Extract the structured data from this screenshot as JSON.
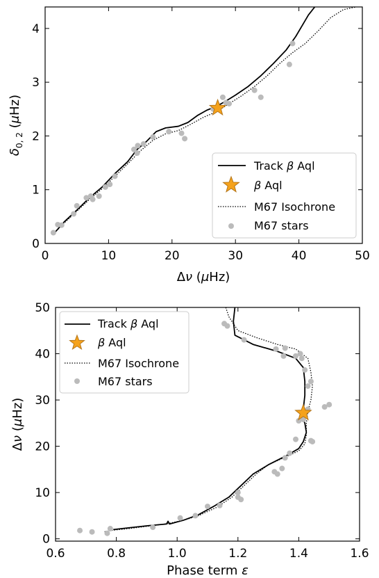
{
  "chart_data": [
    {
      "type": "line",
      "xlabel": "Δν (μHz)",
      "ylabel": "δ0, 2 (μHz)",
      "xlim": [
        0,
        50
      ],
      "ylim": [
        0,
        4.4
      ],
      "xticks": [
        0,
        10,
        20,
        30,
        40,
        50
      ],
      "yticks": [
        0,
        1,
        2,
        3,
        4
      ],
      "xtick_labels": [
        "0",
        "10",
        "20",
        "30",
        "40",
        "50"
      ],
      "ytick_labels": [
        "0",
        "1",
        "2",
        "3",
        "4"
      ],
      "legend_position": "lower-right",
      "legend": [
        "Track β Aql",
        "β Aql",
        "M67 Isochrone",
        "M67 stars"
      ],
      "series": [
        {
          "name": "Track β Aql",
          "style": "solid",
          "color": "#000000",
          "points": [
            [
              1.5,
              0.2
            ],
            [
              3,
              0.4
            ],
            [
              5,
              0.62
            ],
            [
              7,
              0.85
            ],
            [
              9,
              1.05
            ],
            [
              11,
              1.3
            ],
            [
              13,
              1.52
            ],
            [
              14.5,
              1.75
            ],
            [
              16,
              1.9
            ],
            [
              17.5,
              2.08
            ],
            [
              19,
              2.15
            ],
            [
              21,
              2.18
            ],
            [
              22.5,
              2.25
            ],
            [
              24,
              2.38
            ],
            [
              25.5,
              2.48
            ],
            [
              27,
              2.55
            ],
            [
              28.5,
              2.65
            ],
            [
              30,
              2.76
            ],
            [
              32,
              2.92
            ],
            [
              34,
              3.12
            ],
            [
              36,
              3.35
            ],
            [
              38,
              3.6
            ],
            [
              39.5,
              3.85
            ],
            [
              40.5,
              4.05
            ],
            [
              41.5,
              4.25
            ],
            [
              42.5,
              4.4
            ]
          ]
        },
        {
          "name": "M67 Isochrone",
          "style": "dotted",
          "color": "#000000",
          "points": [
            [
              1.5,
              0.2
            ],
            [
              3,
              0.38
            ],
            [
              5,
              0.6
            ],
            [
              7,
              0.82
            ],
            [
              9,
              1.02
            ],
            [
              11,
              1.25
            ],
            [
              13,
              1.48
            ],
            [
              15,
              1.72
            ],
            [
              17,
              1.92
            ],
            [
              19,
              2.04
            ],
            [
              21,
              2.1
            ],
            [
              23,
              2.22
            ],
            [
              25,
              2.35
            ],
            [
              27,
              2.45
            ],
            [
              29,
              2.6
            ],
            [
              31,
              2.75
            ],
            [
              33,
              2.92
            ],
            [
              35,
              3.12
            ],
            [
              37,
              3.35
            ],
            [
              39,
              3.55
            ],
            [
              41,
              3.72
            ],
            [
              43,
              3.95
            ],
            [
              45,
              4.2
            ],
            [
              47,
              4.35
            ],
            [
              49,
              4.4
            ]
          ]
        },
        {
          "name": "M67 stars",
          "style": "scatter",
          "color": "#bbbbbb",
          "points": [
            [
              1.3,
              0.2
            ],
            [
              2,
              0.35
            ],
            [
              2.6,
              0.34
            ],
            [
              4.5,
              0.55
            ],
            [
              5,
              0.7
            ],
            [
              6.5,
              0.85
            ],
            [
              7.2,
              0.88
            ],
            [
              7.5,
              0.82
            ],
            [
              8.5,
              0.88
            ],
            [
              9.5,
              1.05
            ],
            [
              10.2,
              1.1
            ],
            [
              11,
              1.25
            ],
            [
              14,
              1.75
            ],
            [
              14.5,
              1.68
            ],
            [
              14.6,
              1.82
            ],
            [
              15.5,
              1.85
            ],
            [
              17,
              1.98
            ],
            [
              19.5,
              2.08
            ],
            [
              21.5,
              2.05
            ],
            [
              22,
              1.95
            ],
            [
              26.5,
              2.5
            ],
            [
              28,
              2.72
            ],
            [
              28.5,
              2.62
            ],
            [
              29,
              2.6
            ],
            [
              33,
              2.85
            ],
            [
              34,
              2.72
            ],
            [
              38.5,
              3.33
            ],
            [
              39,
              3.72
            ]
          ]
        },
        {
          "name": "β Aql",
          "style": "star",
          "color": "#f5a21b",
          "points": [
            [
              27.2,
              2.52
            ]
          ]
        }
      ]
    },
    {
      "type": "line",
      "xlabel": "Phase term ε",
      "ylabel": "Δν (μHz)",
      "xlim": [
        0.6,
        1.6
      ],
      "ylim": [
        -0.5,
        50
      ],
      "xticks": [
        0.6,
        0.8,
        1.0,
        1.2,
        1.4,
        1.6
      ],
      "yticks": [
        0,
        10,
        20,
        30,
        40,
        50
      ],
      "xtick_labels": [
        "0.6",
        "0.8",
        "1.0",
        "1.2",
        "1.4",
        "1.6"
      ],
      "ytick_labels": [
        "0",
        "10",
        "20",
        "30",
        "40",
        "50"
      ],
      "legend_position": "top-left",
      "legend": [
        "Track β Aql",
        "β Aql",
        "M67 Isochrone",
        "M67 stars"
      ],
      "series": [
        {
          "name": "Track β Aql",
          "style": "solid",
          "color": "#000000",
          "points": [
            [
              1.19,
              50
            ],
            [
              1.185,
              47
            ],
            [
              1.19,
              44
            ],
            [
              1.25,
              42
            ],
            [
              1.33,
              40.5
            ],
            [
              1.39,
              39
            ],
            [
              1.415,
              37
            ],
            [
              1.42,
              34
            ],
            [
              1.42,
              31
            ],
            [
              1.415,
              28
            ],
            [
              1.41,
              26.5
            ],
            [
              1.42,
              25
            ],
            [
              1.425,
              23
            ],
            [
              1.415,
              21
            ],
            [
              1.4,
              19.5
            ],
            [
              1.36,
              18
            ],
            [
              1.3,
              16
            ],
            [
              1.25,
              14
            ],
            [
              1.21,
              11.5
            ],
            [
              1.17,
              9
            ],
            [
              1.12,
              7
            ],
            [
              1.07,
              5.2
            ],
            [
              1.02,
              4
            ],
            [
              0.975,
              3.2
            ],
            [
              0.97,
              3.8
            ],
            [
              0.965,
              3.2
            ],
            [
              0.9,
              2.8
            ],
            [
              0.83,
              2.3
            ],
            [
              0.79,
              2
            ]
          ]
        },
        {
          "name": "M67 Isochrone",
          "style": "dotted",
          "color": "#000000",
          "points": [
            [
              1.16,
              50
            ],
            [
              1.17,
              48
            ],
            [
              1.2,
              45
            ],
            [
              1.26,
              43.5
            ],
            [
              1.33,
              42
            ],
            [
              1.39,
              41
            ],
            [
              1.43,
              39
            ],
            [
              1.44,
              36
            ],
            [
              1.445,
              33
            ],
            [
              1.44,
              30
            ],
            [
              1.43,
              27.5
            ],
            [
              1.425,
              25
            ],
            [
              1.425,
              22.5
            ],
            [
              1.42,
              20.5
            ],
            [
              1.4,
              19
            ],
            [
              1.35,
              17.5
            ],
            [
              1.3,
              16
            ],
            [
              1.26,
              14
            ],
            [
              1.22,
              11.5
            ],
            [
              1.18,
              9
            ],
            [
              1.13,
              6.8
            ],
            [
              1.07,
              5
            ],
            [
              1.02,
              4
            ],
            [
              0.97,
              3.3
            ],
            [
              0.9,
              2.7
            ],
            [
              0.84,
              2.2
            ],
            [
              0.78,
              1.8
            ],
            [
              0.76,
              1.5
            ]
          ]
        },
        {
          "name": "M67 stars",
          "style": "scatter",
          "color": "#bbbbbb",
          "points": [
            [
              0.68,
              1.8
            ],
            [
              0.72,
              1.5
            ],
            [
              0.77,
              1.2
            ],
            [
              0.78,
              2.2
            ],
            [
              0.92,
              2.5
            ],
            [
              1.01,
              4.5
            ],
            [
              1.06,
              5.0
            ],
            [
              1.1,
              7.0
            ],
            [
              1.14,
              7.2
            ],
            [
              1.2,
              9.0
            ],
            [
              1.21,
              8.5
            ],
            [
              1.2,
              10
            ],
            [
              1.32,
              14.5
            ],
            [
              1.33,
              14.0
            ],
            [
              1.345,
              15.2
            ],
            [
              1.355,
              17.5
            ],
            [
              1.37,
              18.5
            ],
            [
              1.39,
              21.5
            ],
            [
              1.4,
              25.5
            ],
            [
              1.415,
              25.8
            ],
            [
              1.44,
              21.2
            ],
            [
              1.445,
              21.0
            ],
            [
              1.43,
              28.0
            ],
            [
              1.43,
              33.0
            ],
            [
              1.44,
              34.0
            ],
            [
              1.485,
              28.5
            ],
            [
              1.5,
              29.0
            ],
            [
              1.39,
              39.5
            ],
            [
              1.405,
              40.0
            ],
            [
              1.41,
              39.0
            ],
            [
              1.355,
              41.2
            ],
            [
              1.325,
              41.0
            ],
            [
              1.35,
              39.5
            ],
            [
              1.155,
              46.5
            ],
            [
              1.165,
              46.0
            ],
            [
              1.22,
              43.0
            ],
            [
              1.42,
              36.5
            ]
          ]
        },
        {
          "name": "β Aql",
          "style": "star",
          "color": "#f5a21b",
          "points": [
            [
              1.415,
              27.2
            ]
          ]
        }
      ]
    }
  ]
}
